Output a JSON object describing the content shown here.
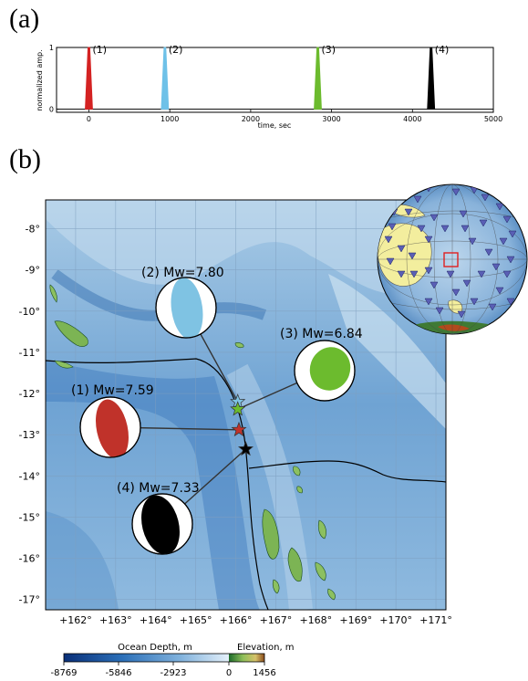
{
  "panel_a": {
    "letter": "(a)",
    "chart_data": {
      "type": "line",
      "xlabel": "time, sec",
      "ylabel": "normalized amp.",
      "xlim": [
        -400,
        5000
      ],
      "ylim": [
        -0.05,
        1.0
      ],
      "x_ticks": [
        "0",
        "1000",
        "2000",
        "3000",
        "4000",
        "5000"
      ],
      "y_ticks": [
        "0",
        "1"
      ],
      "series": [
        {
          "name": "(1)",
          "peak_time": 0,
          "color": "#d42222"
        },
        {
          "name": "(2)",
          "peak_time": 940,
          "color": "#6ec1e8"
        },
        {
          "name": "(3)",
          "peak_time": 2830,
          "color": "#6cbb2e"
        },
        {
          "name": "(4)",
          "peak_time": 4230,
          "color": "#000000"
        }
      ]
    }
  },
  "panel_b": {
    "letter": "(b)",
    "lon_ticks": [
      "+162°",
      "+163°",
      "+164°",
      "+165°",
      "+166°",
      "+167°",
      "+168°",
      "+169°",
      "+170°",
      "+171°"
    ],
    "lat_ticks": [
      "-8°",
      "-9°",
      "-10°",
      "-11°",
      "-12°",
      "-13°",
      "-14°",
      "-15°",
      "-16°",
      "-17°"
    ],
    "events": [
      {
        "label": "(2) Mw=7.80",
        "color": "#7fc3e3",
        "lon": 166.05,
        "lat": -12.2
      },
      {
        "label": "(3) Mw=6.84",
        "color": "#6cbb2e",
        "lon": 166.05,
        "lat": -12.38
      },
      {
        "label": "(1) Mw=7.59",
        "color": "#c0322a",
        "lon": 166.08,
        "lat": -12.88
      },
      {
        "label": "(4) Mw=7.33",
        "color": "#000000",
        "lon": 166.25,
        "lat": -13.35
      }
    ],
    "colorbar": {
      "ocean_label": "Ocean Depth, m",
      "elev_label": "Elevation, m",
      "ticks": [
        "-8769",
        "-5846",
        "-2923",
        "0",
        "1456"
      ]
    }
  }
}
